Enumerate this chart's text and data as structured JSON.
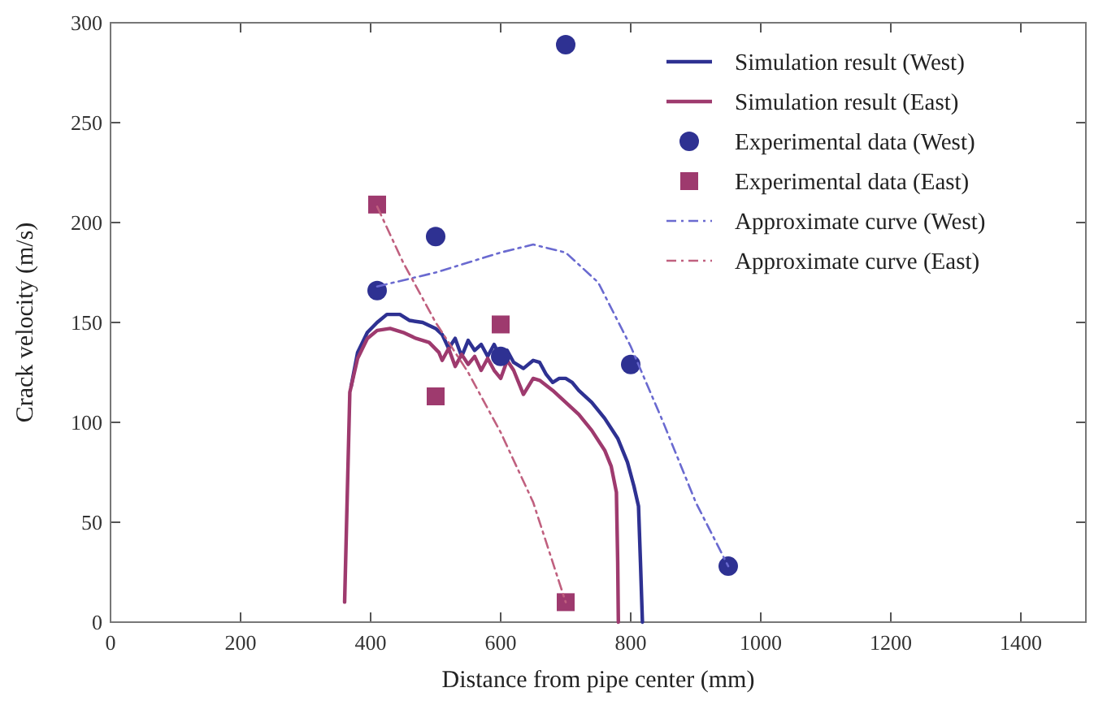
{
  "chart_data": {
    "type": "line",
    "xlabel": "Distance from pipe center (mm)",
    "ylabel": "Crack velocity (m/s)",
    "xlim": [
      0,
      1500
    ],
    "xticks": [
      0,
      200,
      400,
      600,
      800,
      1000,
      1200,
      1400
    ],
    "ylim": [
      0,
      300
    ],
    "yticks": [
      0,
      50,
      100,
      150,
      200,
      250,
      300
    ],
    "grid": false,
    "legend": "top right",
    "series": [
      {
        "name": "Simulation result (West)",
        "color": "#2e3192",
        "line_style": "solid",
        "marker": "none",
        "x": [
          370,
          380,
          395,
          410,
          425,
          445,
          460,
          480,
          500,
          510,
          520,
          530,
          540,
          550,
          560,
          570,
          580,
          590,
          600,
          610,
          620,
          635,
          650,
          660,
          670,
          680,
          690,
          700,
          710,
          720,
          740,
          760,
          780,
          795,
          805,
          812,
          815,
          818
        ],
        "values": [
          118,
          135,
          145,
          150,
          154,
          154,
          151,
          150,
          147,
          144,
          137,
          142,
          133,
          141,
          136,
          139,
          133,
          139,
          132,
          136,
          130,
          127,
          131,
          130,
          124,
          120,
          122,
          122,
          120,
          116,
          110,
          102,
          92,
          80,
          68,
          58,
          30,
          0
        ]
      },
      {
        "name": "Simulation result (East)",
        "color": "#9e3a6e",
        "line_style": "solid",
        "marker": "none",
        "x": [
          360,
          368,
          380,
          395,
          410,
          430,
          450,
          470,
          490,
          505,
          510,
          520,
          530,
          540,
          550,
          560,
          570,
          580,
          590,
          600,
          610,
          620,
          635,
          650,
          660,
          680,
          700,
          720,
          740,
          760,
          770,
          778,
          780,
          781
        ],
        "values": [
          10,
          115,
          132,
          142,
          146,
          147,
          145,
          142,
          140,
          135,
          131,
          137,
          128,
          134,
          129,
          133,
          126,
          132,
          126,
          122,
          131,
          126,
          114,
          122,
          121,
          116,
          110,
          104,
          96,
          86,
          78,
          65,
          30,
          0
        ]
      },
      {
        "name": "Experimental data (West)",
        "type": "scatter",
        "color": "#2e3192",
        "marker": "circle",
        "x": [
          410,
          500,
          600,
          700,
          800,
          950
        ],
        "values": [
          166,
          193,
          133,
          289,
          129,
          28
        ]
      },
      {
        "name": "Experimental data (East)",
        "type": "scatter",
        "color": "#9e3a6e",
        "marker": "square",
        "x": [
          410,
          500,
          600,
          700
        ],
        "values": [
          209,
          113,
          149,
          10
        ]
      },
      {
        "name": "Approximate curve (West)",
        "color": "#6a6ad0",
        "line_style": "dashed",
        "marker": "none",
        "x": [
          410,
          500,
          600,
          650,
          700,
          750,
          800,
          850,
          900,
          950
        ],
        "values": [
          168,
          175,
          185,
          189,
          185,
          170,
          138,
          100,
          60,
          28
        ]
      },
      {
        "name": "Approximate curve (East)",
        "color": "#c0607f",
        "line_style": "dashed",
        "marker": "none",
        "x": [
          410,
          450,
          500,
          550,
          600,
          650,
          700
        ],
        "values": [
          208,
          180,
          150,
          125,
          95,
          60,
          10
        ]
      }
    ]
  }
}
